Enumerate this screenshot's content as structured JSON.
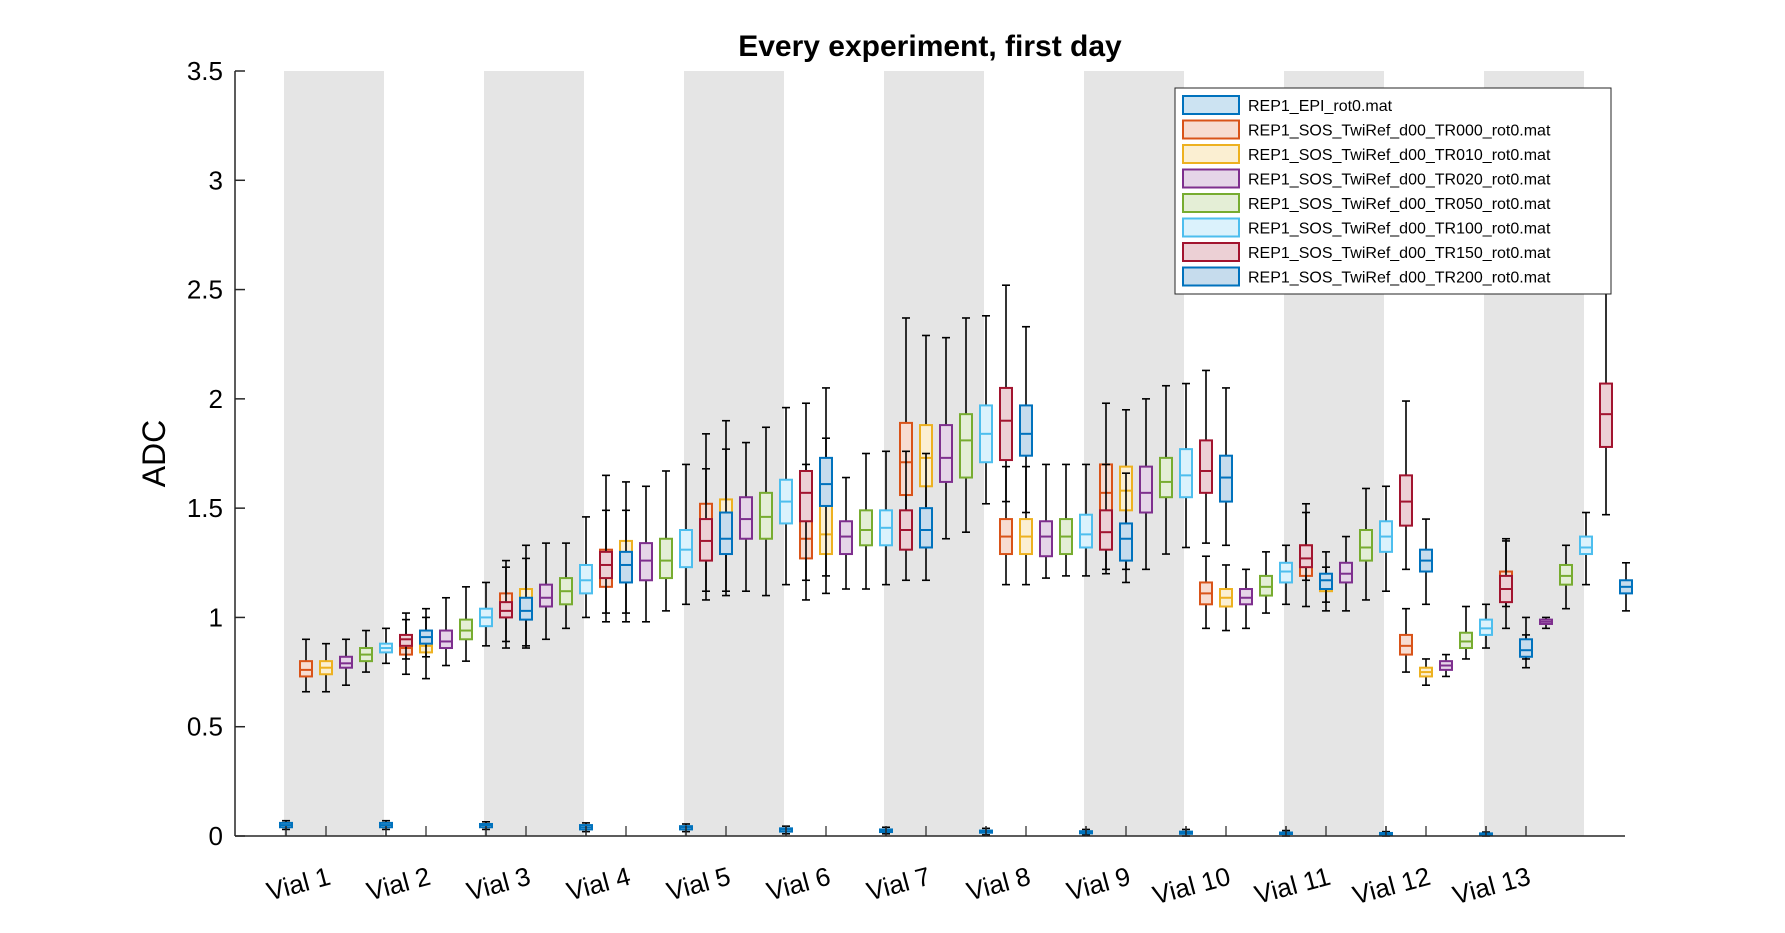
{
  "chart_data": {
    "type": "box",
    "title": "Every experiment, first day",
    "ylabel": "ADC",
    "xlabel": "",
    "ylim": [
      0,
      3.5
    ],
    "yticks": [
      "0",
      "0.5",
      "1",
      "1.5",
      "2",
      "2.5",
      "3",
      "3.5"
    ],
    "ytick_values": [
      0,
      0.5,
      1,
      1.5,
      2,
      2.5,
      3,
      3.5
    ],
    "categories": [
      "Vial 1",
      "Vial 2",
      "Vial 3",
      "Vial 4",
      "Vial 5",
      "Vial 6",
      "Vial 7",
      "Vial 8",
      "Vial 9",
      "Vial 10",
      "Vial 11",
      "Vial 12",
      "Vial 13"
    ],
    "shaded_groups": [
      1,
      3,
      5,
      7,
      9,
      11,
      13
    ],
    "legend_placement": "top-right",
    "grid": false,
    "series": [
      {
        "name": "REP1_EPI_rot0.mat",
        "color": "#0072bd",
        "fill": "#cce3f2",
        "boxes": [
          [
            0.03,
            0.04,
            0.05,
            0.06,
            0.07
          ],
          [
            0.03,
            0.04,
            0.05,
            0.06,
            0.07
          ],
          [
            0.03,
            0.04,
            0.05,
            0.055,
            0.065
          ],
          [
            0.02,
            0.03,
            0.04,
            0.05,
            0.06
          ],
          [
            0.02,
            0.03,
            0.04,
            0.045,
            0.055
          ],
          [
            0.01,
            0.02,
            0.03,
            0.035,
            0.045
          ],
          [
            0.01,
            0.018,
            0.025,
            0.03,
            0.04
          ],
          [
            0.005,
            0.015,
            0.02,
            0.025,
            0.035
          ],
          [
            0.005,
            0.012,
            0.018,
            0.022,
            0.03
          ],
          [
            0.0,
            0.01,
            0.015,
            0.02,
            0.03
          ],
          [
            0.0,
            0.01,
            0.012,
            0.016,
            0.025
          ],
          [
            0.0,
            0.006,
            0.01,
            0.014,
            0.02
          ],
          [
            0.0,
            0.004,
            0.008,
            0.012,
            0.018
          ]
        ]
      },
      {
        "name": "REP1_SOS_TwiRef_d00_TR000_rot0.mat",
        "color": "#d95319",
        "fill": "#f7dcd1",
        "boxes": [
          [
            0.66,
            0.73,
            0.76,
            0.8,
            0.9
          ],
          [
            0.74,
            0.83,
            0.86,
            0.9,
            1.02
          ],
          [
            0.86,
            1.01,
            1.06,
            1.11,
            1.26
          ],
          [
            0.98,
            1.14,
            1.23,
            1.31,
            1.65
          ],
          [
            1.12,
            1.31,
            1.42,
            1.52,
            1.84
          ],
          [
            1.08,
            1.27,
            1.36,
            1.45,
            1.7
          ],
          [
            1.36,
            1.56,
            1.71,
            1.89,
            2.37
          ],
          [
            1.15,
            1.29,
            1.37,
            1.45,
            1.69
          ],
          [
            1.22,
            1.46,
            1.57,
            1.7,
            1.98
          ],
          [
            0.95,
            1.06,
            1.11,
            1.16,
            1.28
          ],
          [
            1.05,
            1.19,
            1.26,
            1.33,
            1.52
          ],
          [
            0.75,
            0.83,
            0.87,
            0.92,
            1.04
          ],
          [
            1.05,
            1.1,
            1.15,
            1.21,
            1.35
          ]
        ]
      },
      {
        "name": "REP1_SOS_TwiRef_d00_TR010_rot0.mat",
        "color": "#edb120",
        "fill": "#fbefd2",
        "boxes": [
          [
            0.66,
            0.74,
            0.77,
            0.8,
            0.88
          ],
          [
            0.72,
            0.84,
            0.87,
            0.92,
            1.04
          ],
          [
            0.86,
            1.02,
            1.07,
            1.13,
            1.33
          ],
          [
            0.98,
            1.17,
            1.25,
            1.35,
            1.62
          ],
          [
            1.12,
            1.31,
            1.42,
            1.54,
            1.9
          ],
          [
            1.11,
            1.29,
            1.38,
            1.51,
            1.82
          ],
          [
            1.35,
            1.6,
            1.73,
            1.88,
            2.29
          ],
          [
            1.15,
            1.29,
            1.37,
            1.45,
            1.69
          ],
          [
            1.22,
            1.49,
            1.58,
            1.69,
            1.95
          ],
          [
            0.94,
            1.05,
            1.09,
            1.13,
            1.24
          ],
          [
            1.07,
            1.12,
            1.15,
            1.19,
            1.23
          ],
          [
            0.69,
            0.73,
            0.75,
            0.77,
            0.81
          ],
          [
            0.81,
            0.85,
            0.86,
            0.88,
            0.92
          ]
        ]
      },
      {
        "name": "REP1_SOS_TwiRef_d00_TR020_rot0.mat",
        "color": "#7e2f8e",
        "fill": "#e5d5e8",
        "boxes": [
          [
            0.69,
            0.77,
            0.79,
            0.82,
            0.9
          ],
          [
            0.78,
            0.86,
            0.89,
            0.94,
            1.09
          ],
          [
            0.9,
            1.05,
            1.09,
            1.15,
            1.34
          ],
          [
            0.98,
            1.17,
            1.26,
            1.34,
            1.6
          ],
          [
            1.12,
            1.36,
            1.45,
            1.55,
            1.8
          ],
          [
            1.13,
            1.29,
            1.37,
            1.44,
            1.64
          ],
          [
            1.36,
            1.62,
            1.73,
            1.88,
            2.28
          ],
          [
            1.18,
            1.28,
            1.37,
            1.44,
            1.7
          ],
          [
            1.22,
            1.48,
            1.57,
            1.69,
            2.0
          ],
          [
            0.95,
            1.06,
            1.09,
            1.13,
            1.22
          ],
          [
            1.03,
            1.16,
            1.2,
            1.25,
            1.37
          ],
          [
            0.73,
            0.76,
            0.78,
            0.8,
            0.83
          ],
          [
            0.95,
            0.97,
            0.98,
            0.99,
            1.0
          ]
        ]
      },
      {
        "name": "REP1_SOS_TwiRef_d00_TR050_rot0.mat",
        "color": "#77ac30",
        "fill": "#e4eed6",
        "boxes": [
          [
            0.75,
            0.8,
            0.83,
            0.86,
            0.94
          ],
          [
            0.8,
            0.9,
            0.94,
            0.99,
            1.14
          ],
          [
            0.95,
            1.06,
            1.12,
            1.18,
            1.34
          ],
          [
            1.03,
            1.18,
            1.26,
            1.36,
            1.67
          ],
          [
            1.1,
            1.36,
            1.46,
            1.57,
            1.87
          ],
          [
            1.13,
            1.33,
            1.4,
            1.49,
            1.75
          ],
          [
            1.39,
            1.64,
            1.81,
            1.93,
            2.37
          ],
          [
            1.19,
            1.29,
            1.37,
            1.45,
            1.7
          ],
          [
            1.29,
            1.55,
            1.62,
            1.73,
            2.06
          ],
          [
            1.02,
            1.1,
            1.14,
            1.19,
            1.3
          ],
          [
            1.08,
            1.26,
            1.32,
            1.4,
            1.59
          ],
          [
            0.81,
            0.86,
            0.89,
            0.93,
            1.05
          ],
          [
            1.04,
            1.15,
            1.19,
            1.24,
            1.33
          ]
        ]
      },
      {
        "name": "REP1_SOS_TwiRef_d00_TR100_rot0.mat",
        "color": "#4dbeee",
        "fill": "#dbf2fc",
        "boxes": [
          [
            0.79,
            0.84,
            0.86,
            0.88,
            0.95
          ],
          [
            0.87,
            0.96,
            1.0,
            1.04,
            1.16
          ],
          [
            1.0,
            1.11,
            1.17,
            1.24,
            1.46
          ],
          [
            1.06,
            1.23,
            1.31,
            1.4,
            1.7
          ],
          [
            1.15,
            1.43,
            1.53,
            1.63,
            1.96
          ],
          [
            1.15,
            1.33,
            1.41,
            1.49,
            1.76
          ],
          [
            1.52,
            1.71,
            1.84,
            1.97,
            2.38
          ],
          [
            1.19,
            1.32,
            1.38,
            1.47,
            1.7
          ],
          [
            1.32,
            1.55,
            1.65,
            1.77,
            2.07
          ],
          [
            1.06,
            1.16,
            1.21,
            1.25,
            1.33
          ],
          [
            1.12,
            1.3,
            1.37,
            1.44,
            1.6
          ],
          [
            0.86,
            0.92,
            0.95,
            0.99,
            1.06
          ],
          [
            1.15,
            1.29,
            1.32,
            1.37,
            1.48
          ]
        ]
      },
      {
        "name": "REP1_SOS_TwiRef_d00_TR150_rot0.mat",
        "color": "#a2142f",
        "fill": "#ecd0d5",
        "boxes": [
          [
            0.81,
            0.87,
            0.9,
            0.92,
            0.99
          ],
          [
            0.89,
            1.0,
            1.03,
            1.07,
            1.23
          ],
          [
            1.02,
            1.18,
            1.24,
            1.3,
            1.49
          ],
          [
            1.08,
            1.26,
            1.35,
            1.45,
            1.68
          ],
          [
            1.17,
            1.44,
            1.57,
            1.67,
            1.98
          ],
          [
            1.17,
            1.31,
            1.4,
            1.49,
            1.76
          ],
          [
            1.53,
            1.72,
            1.9,
            2.05,
            2.52
          ],
          [
            1.2,
            1.31,
            1.39,
            1.49,
            1.7
          ],
          [
            1.34,
            1.57,
            1.67,
            1.81,
            2.13
          ],
          [
            1.17,
            1.23,
            1.27,
            1.33,
            1.48
          ],
          [
            1.22,
            1.42,
            1.53,
            1.65,
            1.99
          ],
          [
            0.95,
            1.07,
            1.13,
            1.19,
            1.36
          ],
          [
            1.47,
            1.78,
            1.93,
            2.07,
            2.52
          ]
        ]
      },
      {
        "name": "REP1_SOS_TwiRef_d00_TR200_rot0.mat",
        "color": "#0072bd",
        "fill": "#c6dced",
        "boxes": [
          [
            0.82,
            0.88,
            0.91,
            0.94,
            1.0
          ],
          [
            0.87,
            0.99,
            1.03,
            1.09,
            1.27
          ],
          [
            1.02,
            1.16,
            1.24,
            1.3,
            1.49
          ],
          [
            1.1,
            1.29,
            1.36,
            1.48,
            1.77
          ],
          [
            1.19,
            1.51,
            1.61,
            1.73,
            2.05
          ],
          [
            1.17,
            1.32,
            1.4,
            1.5,
            1.75
          ],
          [
            1.48,
            1.74,
            1.84,
            1.97,
            2.33
          ],
          [
            1.16,
            1.26,
            1.36,
            1.43,
            1.66
          ],
          [
            1.33,
            1.53,
            1.64,
            1.74,
            2.05
          ],
          [
            1.03,
            1.13,
            1.17,
            1.2,
            1.3
          ],
          [
            1.06,
            1.21,
            1.26,
            1.31,
            1.45
          ],
          [
            0.77,
            0.82,
            0.85,
            0.9,
            1.0
          ],
          [
            1.03,
            1.11,
            1.14,
            1.17,
            1.25
          ]
        ]
      }
    ]
  }
}
